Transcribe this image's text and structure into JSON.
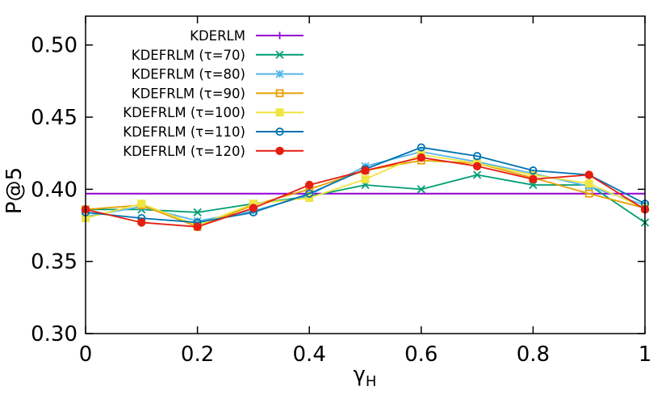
{
  "chart_data": {
    "type": "line",
    "title": "",
    "xlabel": "γ",
    "xlabel_sub": "H",
    "ylabel": "P@5",
    "xlim": [
      0,
      1
    ],
    "ylim": [
      0.3,
      0.52
    ],
    "xticks": [
      0,
      0.2,
      0.4,
      0.6,
      0.8,
      1
    ],
    "xtick_labels": [
      "0",
      "0.2",
      "0.4",
      "0.6",
      "0.8",
      "1"
    ],
    "yticks": [
      0.3,
      0.35,
      0.4,
      0.45,
      0.5
    ],
    "ytick_labels": [
      "0.30",
      "0.35",
      "0.40",
      "0.45",
      "0.50"
    ],
    "grid": false,
    "legend_position": "top-left",
    "x": [
      0,
      0.1,
      0.2,
      0.3,
      0.4,
      0.5,
      0.6,
      0.7,
      0.8,
      0.9,
      1.0
    ],
    "series": [
      {
        "name": "KDERLM",
        "color": "#9400d3",
        "marker": "plus",
        "x": [
          0,
          1
        ],
        "values": [
          0.397,
          0.397
        ]
      },
      {
        "name": "KDEFRLM (τ=70)",
        "color": "#009e73",
        "marker": "cross",
        "values": [
          0.386,
          0.386,
          0.384,
          0.39,
          0.395,
          0.403,
          0.4,
          0.41,
          0.403,
          0.403,
          0.377
        ]
      },
      {
        "name": "KDEFRLM (τ=80)",
        "color": "#56b4e9",
        "marker": "star",
        "values": [
          0.381,
          0.388,
          0.378,
          0.385,
          0.396,
          0.416,
          0.426,
          0.419,
          0.411,
          0.402,
          0.389
        ]
      },
      {
        "name": "KDEFRLM (τ=90)",
        "color": "#e69f00",
        "marker": "square-open",
        "values": [
          0.386,
          0.389,
          0.374,
          0.389,
          0.4,
          0.413,
          0.42,
          0.418,
          0.408,
          0.397,
          0.387
        ]
      },
      {
        "name": "KDEFRLM (τ=100)",
        "color": "#f0e442",
        "marker": "square-filled",
        "values": [
          0.38,
          0.39,
          0.375,
          0.39,
          0.394,
          0.407,
          0.424,
          0.418,
          0.41,
          0.404,
          0.387
        ]
      },
      {
        "name": "KDEFRLM (τ=110)",
        "color": "#0072b2",
        "marker": "circle-open",
        "values": [
          0.384,
          0.38,
          0.377,
          0.384,
          0.397,
          0.414,
          0.429,
          0.423,
          0.413,
          0.41,
          0.39
        ]
      },
      {
        "name": "KDEFRLM (τ=120)",
        "color": "#e51e10",
        "marker": "circle-filled",
        "values": [
          0.386,
          0.377,
          0.374,
          0.387,
          0.403,
          0.413,
          0.422,
          0.416,
          0.407,
          0.41,
          0.386
        ]
      }
    ]
  }
}
